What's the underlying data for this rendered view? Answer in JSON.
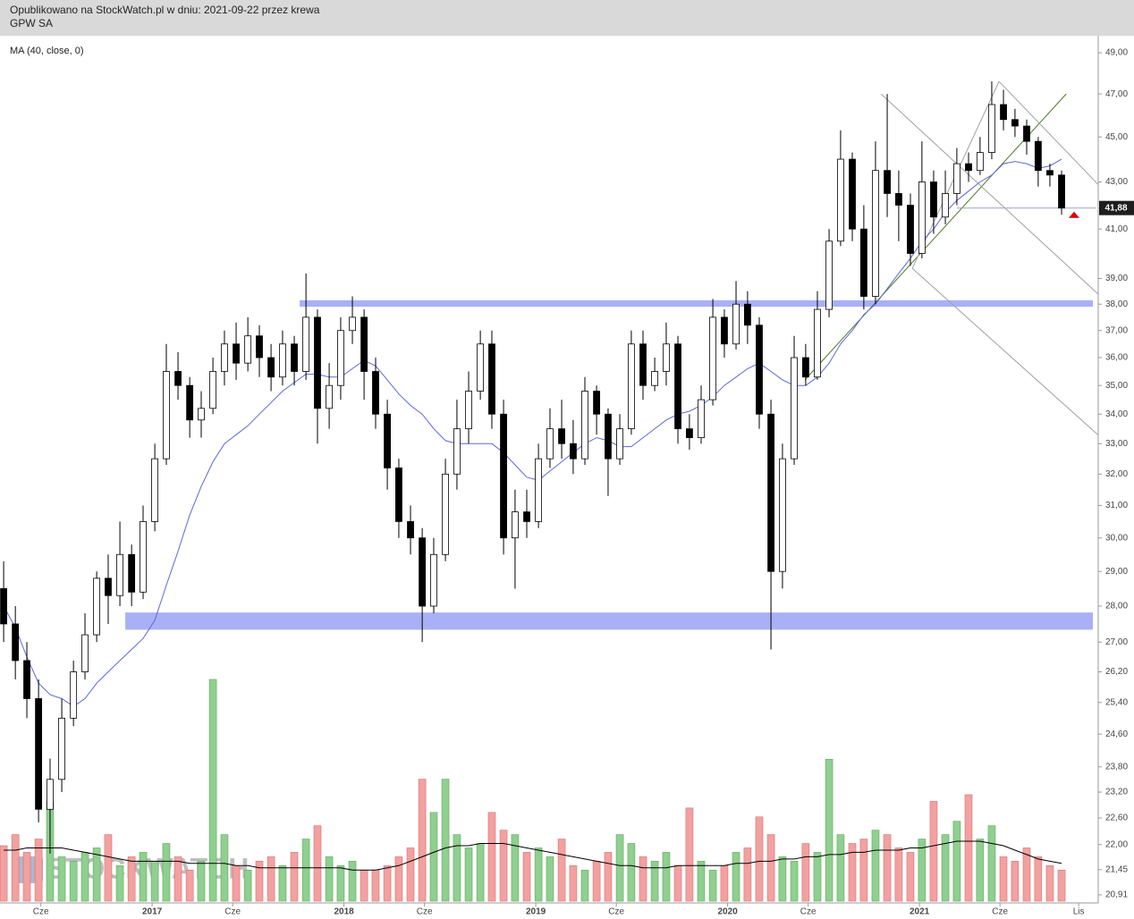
{
  "header": {
    "line1": "Opublikowano na StockWatch.pl w dniu: 2021-09-22 przez krewa",
    "line2": "GPW SA"
  },
  "chart_data": {
    "type": "candlestick",
    "indicator_label": "MA (40, close, 0)",
    "watermark": "STOCKWATCH",
    "log_scale": true,
    "xlim": [
      2016.207,
      2021.932
    ],
    "ylim": [
      20.74,
      49.85
    ],
    "xticks": [
      {
        "value": 2016.42,
        "label": "Cze"
      },
      2017,
      {
        "value": 2017.42,
        "label": "Cze"
      },
      2018,
      {
        "value": 2018.42,
        "label": "Cze"
      },
      2019,
      {
        "value": 2019.42,
        "label": "Cze"
      },
      2020,
      {
        "value": 2020.42,
        "label": "Cze"
      },
      2021,
      {
        "value": 2021.42,
        "label": "Cze"
      },
      {
        "value": 2021.83,
        "label": "Lis"
      }
    ],
    "yticks": [
      {
        "value": 49,
        "label": "49,00"
      },
      {
        "value": 47,
        "label": "47,00"
      },
      {
        "value": 45,
        "label": "45,00"
      },
      {
        "value": 43,
        "label": "43,00"
      },
      {
        "value": 41,
        "label": "41,00"
      },
      {
        "value": 39,
        "label": "39,00"
      },
      {
        "value": 38,
        "label": "38,00"
      },
      {
        "value": 37,
        "label": "37,00"
      },
      {
        "value": 36,
        "label": "36,00"
      },
      {
        "value": 35,
        "label": "35,00"
      },
      {
        "value": 34,
        "label": "34,00"
      },
      {
        "value": 33,
        "label": "33,00"
      },
      {
        "value": 32,
        "label": "32,00"
      },
      {
        "value": 31,
        "label": "31,00"
      },
      {
        "value": 30,
        "label": "30,00"
      },
      {
        "value": 29,
        "label": "29,00"
      },
      {
        "value": 28,
        "label": "28,00"
      },
      {
        "value": 27,
        "label": "27,00"
      },
      {
        "value": 26.2,
        "label": "26,20"
      },
      {
        "value": 25.4,
        "label": "25,40"
      },
      {
        "value": 24.6,
        "label": "24,60"
      },
      {
        "value": 23.8,
        "label": "23,80"
      },
      {
        "value": 23.2,
        "label": "23,20"
      },
      {
        "value": 22.6,
        "label": "22,60"
      },
      {
        "value": 22,
        "label": "22,00"
      },
      {
        "value": 21.45,
        "label": "21,45"
      },
      {
        "value": 20.91,
        "label": "20,91"
      }
    ],
    "last_price": {
      "value": 41.88,
      "label": "41,88"
    },
    "up_color": "#ffffff",
    "down_color": "#000000",
    "x": [
      2016.226,
      2016.287,
      2016.347,
      2016.408,
      2016.468,
      2016.529,
      2016.59,
      2016.65,
      2016.711,
      2016.771,
      2016.832,
      2016.893,
      2016.953,
      2017.014,
      2017.074,
      2017.135,
      2017.196,
      2017.256,
      2017.317,
      2017.377,
      2017.438,
      2017.499,
      2017.559,
      2017.62,
      2017.68,
      2017.741,
      2017.802,
      2017.862,
      2017.923,
      2017.983,
      2018.044,
      2018.105,
      2018.165,
      2018.226,
      2018.286,
      2018.347,
      2018.408,
      2018.468,
      2018.529,
      2018.589,
      2018.65,
      2018.711,
      2018.771,
      2018.832,
      2018.892,
      2018.953,
      2019.014,
      2019.074,
      2019.135,
      2019.195,
      2019.256,
      2019.317,
      2019.377,
      2019.438,
      2019.498,
      2019.559,
      2019.62,
      2019.68,
      2019.741,
      2019.801,
      2019.862,
      2019.923,
      2019.983,
      2020.044,
      2020.104,
      2020.165,
      2020.226,
      2020.286,
      2020.347,
      2020.407,
      2020.468,
      2020.529,
      2020.589,
      2020.65,
      2020.71,
      2020.771,
      2020.832,
      2020.892,
      2020.953,
      2021.013,
      2021.074,
      2021.135,
      2021.195,
      2021.256,
      2021.316,
      2021.377,
      2021.438,
      2021.498,
      2021.559,
      2021.619,
      2021.68,
      2021.741
    ],
    "open": [
      28.5,
      27.5,
      26.5,
      25.5,
      22.8,
      23.5,
      25,
      26.2,
      27.2,
      28.8,
      28.3,
      29.5,
      28.4,
      30.5,
      32.5,
      35.5,
      35,
      33.8,
      34.2,
      35.5,
      36.5,
      35.8,
      36.8,
      36,
      35.3,
      36.5,
      35.5,
      37.5,
      34.2,
      35,
      37,
      37.5,
      35.5,
      34,
      32.2,
      30.5,
      30,
      28,
      29.5,
      32,
      33.5,
      34.8,
      36.5,
      34,
      30,
      30.8,
      30.5,
      32.5,
      33.5,
      33,
      32.5,
      34.8,
      34,
      32.5,
      33.5,
      36.5,
      35,
      35.5,
      36.5,
      33.5,
      33.2,
      34.5,
      37.5,
      36.5,
      38,
      37.2,
      34,
      29,
      32.5,
      36,
      35.3,
      37.8,
      40.5,
      44,
      41,
      38.3,
      43.5,
      42.5,
      42,
      40,
      43,
      41.5,
      42.5,
      43.8,
      43.5,
      44.3,
      46.5,
      45.8,
      45.5,
      44.8,
      43.5,
      43.3
    ],
    "high": [
      29.3,
      28,
      27,
      26,
      24,
      25.5,
      26.5,
      27.8,
      29,
      29.5,
      30.5,
      29.8,
      31,
      33,
      36.5,
      36.2,
      35.3,
      34.8,
      36,
      37,
      37.3,
      37.5,
      37.2,
      36.5,
      37,
      36.8,
      39.2,
      37.8,
      35.8,
      37.5,
      38.3,
      37.8,
      36,
      34.5,
      32.5,
      31,
      30.3,
      30,
      32.5,
      34.5,
      35.5,
      37,
      37,
      34.5,
      31.5,
      31.5,
      33,
      34.2,
      34.5,
      33.8,
      35.3,
      35,
      34.2,
      34,
      37,
      37,
      36,
      37.3,
      36.8,
      34,
      35,
      38.2,
      37.8,
      38.9,
      38.5,
      37.5,
      34.5,
      33,
      36.8,
      36.5,
      38.5,
      41,
      45.3,
      44.3,
      42,
      44.8,
      47,
      43.5,
      42.5,
      44.8,
      43.5,
      43.5,
      44.5,
      44.3,
      45,
      47.6,
      47.2,
      46.3,
      45.8,
      45,
      43.8,
      43.5
    ],
    "low": [
      27,
      26,
      25,
      22.5,
      21.8,
      23.2,
      24.8,
      26,
      27,
      27.5,
      28,
      28,
      28.2,
      30.2,
      32.3,
      34.5,
      33.2,
      33.2,
      34,
      35,
      35.2,
      35.5,
      35.3,
      34.8,
      35,
      35,
      35.2,
      33,
      33.5,
      34.5,
      36.5,
      34.5,
      33.5,
      31.5,
      30,
      29.5,
      27,
      27.8,
      29.3,
      31.5,
      33,
      34.5,
      33.5,
      29.5,
      28.5,
      30,
      30.3,
      32.2,
      32.5,
      32,
      32.3,
      33.3,
      31.3,
      32.3,
      33.3,
      34.5,
      34.8,
      35,
      33,
      32.8,
      33,
      34.3,
      36,
      36.3,
      36.5,
      33.5,
      26.8,
      28.5,
      32.3,
      35,
      35.2,
      37.5,
      40.3,
      40.5,
      37.8,
      38,
      41.5,
      40.5,
      39.5,
      39.8,
      40.8,
      41.2,
      42,
      43,
      43.3,
      44,
      45.3,
      45,
      44.2,
      42.8,
      42.8,
      41.6
    ],
    "close": [
      27.5,
      26.5,
      25.5,
      22.8,
      23.5,
      25,
      26.2,
      27.2,
      28.8,
      28.3,
      29.5,
      28.4,
      30.5,
      32.5,
      35.5,
      35,
      33.8,
      34.2,
      35.5,
      36.5,
      35.8,
      36.8,
      36,
      35.3,
      36.5,
      35.5,
      37.5,
      34.2,
      35,
      37,
      37.5,
      35.5,
      34,
      32.2,
      30.5,
      30,
      28,
      29.5,
      32,
      33.5,
      34.8,
      36.5,
      34,
      30,
      30.8,
      30.5,
      32.5,
      33.5,
      33,
      32.5,
      34.8,
      34,
      32.5,
      33.5,
      36.5,
      35,
      35.5,
      36.5,
      33.5,
      33.2,
      34.5,
      37.5,
      36.5,
      38,
      37.2,
      34,
      29,
      32.5,
      36,
      35.3,
      37.8,
      40.5,
      44,
      41,
      38.3,
      43.5,
      42.5,
      42,
      40,
      43,
      41.5,
      42.5,
      43.8,
      43.5,
      44.3,
      46.5,
      45.8,
      45.5,
      44.8,
      43.5,
      43.3,
      41.88
    ],
    "ma": {
      "color": "#5c68d8",
      "values": [
        28.0,
        27.4,
        26.6,
        25.9,
        25.6,
        25.5,
        25.3,
        25.5,
        25.9,
        26.2,
        26.5,
        26.8,
        27.1,
        27.6,
        28.6,
        29.6,
        30.7,
        31.6,
        32.4,
        33.0,
        33.3,
        33.6,
        34.0,
        34.4,
        34.8,
        35.1,
        35.4,
        35.4,
        35.3,
        35.3,
        35.6,
        35.9,
        35.7,
        35.2,
        34.7,
        34.3,
        34.0,
        33.5,
        33.1,
        33.0,
        33.0,
        33.0,
        33.0,
        32.7,
        32.3,
        31.9,
        31.8,
        32.1,
        32.4,
        32.7,
        33.0,
        33.2,
        33.1,
        32.9,
        32.9,
        33.2,
        33.5,
        33.8,
        34.0,
        34.1,
        34.3,
        34.6,
        35.0,
        35.3,
        35.6,
        35.8,
        35.5,
        35.2,
        35.0,
        35.0,
        35.3,
        35.8,
        36.5,
        37.0,
        37.6,
        38.0,
        38.6,
        39.2,
        39.8,
        40.5,
        41.0,
        41.7,
        42.2,
        42.6,
        43.0,
        43.3,
        43.8,
        43.9,
        43.8,
        43.6,
        43.7,
        44.0
      ]
    },
    "volume": {
      "ylim": [
        0,
        100
      ],
      "up_color": "#8fcf8f",
      "down_color": "#f3a0a0",
      "values": [
        25,
        30,
        22,
        28,
        45,
        20,
        18,
        22,
        24,
        30,
        16,
        20,
        22,
        18,
        26,
        20,
        14,
        18,
        100,
        30,
        16,
        14,
        18,
        20,
        16,
        22,
        28,
        34,
        20,
        16,
        18,
        14,
        14,
        16,
        20,
        24,
        55,
        40,
        55,
        30,
        24,
        26,
        40,
        32,
        30,
        22,
        24,
        20,
        28,
        16,
        14,
        18,
        22,
        30,
        26,
        20,
        18,
        22,
        16,
        42,
        18,
        14,
        16,
        22,
        24,
        38,
        30,
        20,
        18,
        26,
        22,
        64,
        30,
        26,
        28,
        32,
        30,
        24,
        22,
        28,
        45,
        30,
        36,
        48,
        28,
        34,
        20,
        18,
        24,
        20,
        16,
        14
      ]
    },
    "volume_ma": {
      "color": "#000000",
      "values": [
        23,
        23,
        24,
        24,
        24,
        24,
        23,
        22,
        21,
        20,
        19,
        18,
        18,
        18,
        18,
        18,
        17,
        17,
        17,
        17,
        16,
        16,
        15,
        15,
        15,
        15,
        15,
        15,
        15,
        15,
        14,
        14,
        14,
        15,
        16,
        18,
        20,
        22,
        24,
        25,
        25,
        26,
        26,
        26,
        25,
        24,
        23,
        22,
        21,
        20,
        19,
        18,
        17,
        16,
        16,
        15,
        15,
        15,
        16,
        16,
        16,
        16,
        16,
        17,
        17,
        18,
        18,
        19,
        19,
        20,
        20,
        21,
        21,
        22,
        22,
        23,
        23,
        23,
        24,
        24,
        25,
        26,
        27,
        27,
        27,
        26,
        25,
        23,
        21,
        19,
        18,
        17
      ]
    },
    "zones": [
      {
        "x": [
          2017.769,
          2021.904
        ],
        "y": [
          37.9,
          38.15
        ],
        "color": "#aab0f5"
      },
      {
        "x": [
          2016.86,
          2021.904
        ],
        "y": [
          27.34,
          27.82
        ],
        "color": "#aab0f5"
      }
    ],
    "lines": [
      {
        "x": [
          2020.403,
          2021.765
        ],
        "y": [
          35.2,
          47.0
        ],
        "color": "#4e7a2a"
      },
      {
        "x": [
          2020.8,
          2021.93
        ],
        "y": [
          47.0,
          38.4
        ],
        "color": "#a0a0a0"
      },
      {
        "x": [
          2020.963,
          2021.93
        ],
        "y": [
          39.4,
          33.3
        ],
        "color": "#a0a0a0"
      },
      {
        "x": [
          2021.415,
          2021.93
        ],
        "y": [
          47.6,
          42.9
        ],
        "color": "#a0a0a0"
      },
      {
        "x": [
          2020.963,
          2021.415
        ],
        "y": [
          39.4,
          47.6
        ],
        "color": "#a0a0a0"
      },
      {
        "x": [
          2021.196,
          2021.92
        ],
        "y": [
          41.88,
          41.88
        ],
        "color": "#9aa0c8"
      }
    ]
  }
}
